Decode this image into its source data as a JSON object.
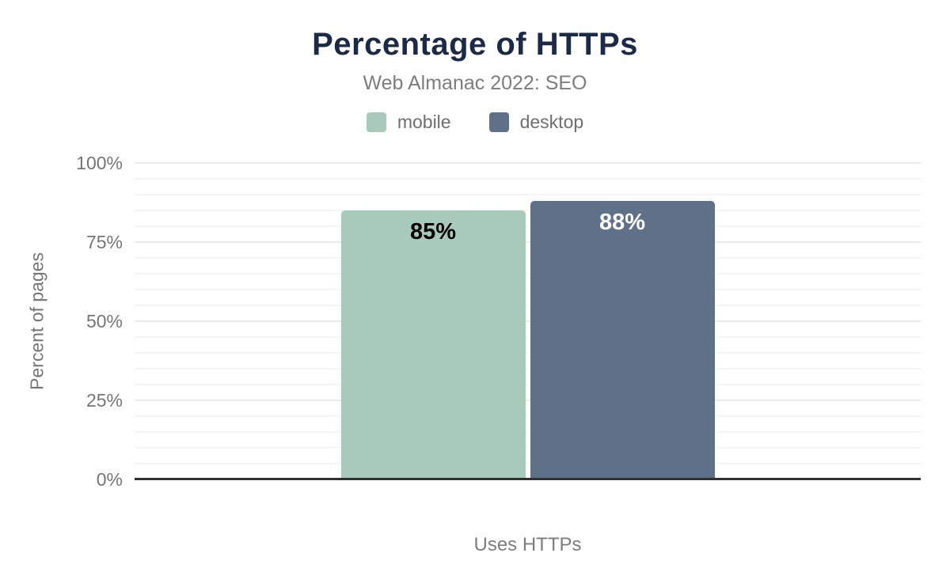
{
  "chart_data": {
    "type": "bar",
    "title": "Percentage of HTTPs",
    "subtitle": "Web Almanac 2022: SEO",
    "xlabel": "Uses HTTPs",
    "ylabel": "Percent of pages",
    "categories": [
      "Uses HTTPs"
    ],
    "series": [
      {
        "name": "mobile",
        "values": [
          85
        ],
        "value_labels": [
          "85%"
        ],
        "color": "#a8cabb",
        "value_label_color": "#000000"
      },
      {
        "name": "desktop",
        "values": [
          88
        ],
        "value_labels": [
          "88%"
        ],
        "color": "#5f7189",
        "value_label_color": "#ffffff"
      }
    ],
    "ylim": [
      0,
      100
    ],
    "y_ticks": [
      "0%",
      "25%",
      "50%",
      "75%",
      "100%"
    ],
    "y_tick_values": [
      0,
      25,
      50,
      75,
      100
    ],
    "minor_grid_step": 5,
    "grid": true,
    "legend_position": "top"
  },
  "colors": {
    "title": "#1b2a47",
    "subtitle": "#7d7d7d",
    "axis_text": "#757575",
    "legend_text": "#6e6e6e",
    "axis_line": "#303030",
    "major_gridline": "#ebebeb",
    "minor_gridline": "#f5f5f5",
    "background": "#ffffff"
  }
}
